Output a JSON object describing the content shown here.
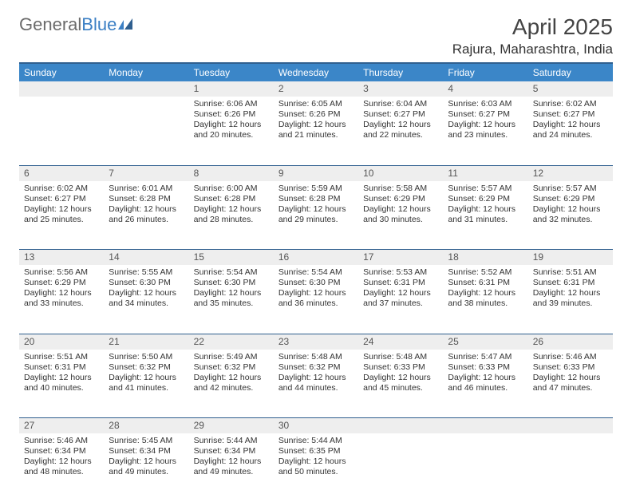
{
  "brand": {
    "part1": "General",
    "part2": "Blue"
  },
  "title": "April 2025",
  "location": "Rajura, Maharashtra, India",
  "colors": {
    "header_bg": "#3b86c8",
    "header_border": "#2f5f8f",
    "daynum_bg": "#eeeeee",
    "text": "#333333",
    "logo_gray": "#6b6b6b",
    "logo_blue": "#3b7fc4"
  },
  "weekdays": [
    "Sunday",
    "Monday",
    "Tuesday",
    "Wednesday",
    "Thursday",
    "Friday",
    "Saturday"
  ],
  "weeks": [
    [
      null,
      null,
      {
        "n": "1",
        "sr": "6:06 AM",
        "ss": "6:26 PM",
        "dl": "12 hours and 20 minutes."
      },
      {
        "n": "2",
        "sr": "6:05 AM",
        "ss": "6:26 PM",
        "dl": "12 hours and 21 minutes."
      },
      {
        "n": "3",
        "sr": "6:04 AM",
        "ss": "6:27 PM",
        "dl": "12 hours and 22 minutes."
      },
      {
        "n": "4",
        "sr": "6:03 AM",
        "ss": "6:27 PM",
        "dl": "12 hours and 23 minutes."
      },
      {
        "n": "5",
        "sr": "6:02 AM",
        "ss": "6:27 PM",
        "dl": "12 hours and 24 minutes."
      }
    ],
    [
      {
        "n": "6",
        "sr": "6:02 AM",
        "ss": "6:27 PM",
        "dl": "12 hours and 25 minutes."
      },
      {
        "n": "7",
        "sr": "6:01 AM",
        "ss": "6:28 PM",
        "dl": "12 hours and 26 minutes."
      },
      {
        "n": "8",
        "sr": "6:00 AM",
        "ss": "6:28 PM",
        "dl": "12 hours and 28 minutes."
      },
      {
        "n": "9",
        "sr": "5:59 AM",
        "ss": "6:28 PM",
        "dl": "12 hours and 29 minutes."
      },
      {
        "n": "10",
        "sr": "5:58 AM",
        "ss": "6:29 PM",
        "dl": "12 hours and 30 minutes."
      },
      {
        "n": "11",
        "sr": "5:57 AM",
        "ss": "6:29 PM",
        "dl": "12 hours and 31 minutes."
      },
      {
        "n": "12",
        "sr": "5:57 AM",
        "ss": "6:29 PM",
        "dl": "12 hours and 32 minutes."
      }
    ],
    [
      {
        "n": "13",
        "sr": "5:56 AM",
        "ss": "6:29 PM",
        "dl": "12 hours and 33 minutes."
      },
      {
        "n": "14",
        "sr": "5:55 AM",
        "ss": "6:30 PM",
        "dl": "12 hours and 34 minutes."
      },
      {
        "n": "15",
        "sr": "5:54 AM",
        "ss": "6:30 PM",
        "dl": "12 hours and 35 minutes."
      },
      {
        "n": "16",
        "sr": "5:54 AM",
        "ss": "6:30 PM",
        "dl": "12 hours and 36 minutes."
      },
      {
        "n": "17",
        "sr": "5:53 AM",
        "ss": "6:31 PM",
        "dl": "12 hours and 37 minutes."
      },
      {
        "n": "18",
        "sr": "5:52 AM",
        "ss": "6:31 PM",
        "dl": "12 hours and 38 minutes."
      },
      {
        "n": "19",
        "sr": "5:51 AM",
        "ss": "6:31 PM",
        "dl": "12 hours and 39 minutes."
      }
    ],
    [
      {
        "n": "20",
        "sr": "5:51 AM",
        "ss": "6:31 PM",
        "dl": "12 hours and 40 minutes."
      },
      {
        "n": "21",
        "sr": "5:50 AM",
        "ss": "6:32 PM",
        "dl": "12 hours and 41 minutes."
      },
      {
        "n": "22",
        "sr": "5:49 AM",
        "ss": "6:32 PM",
        "dl": "12 hours and 42 minutes."
      },
      {
        "n": "23",
        "sr": "5:48 AM",
        "ss": "6:32 PM",
        "dl": "12 hours and 44 minutes."
      },
      {
        "n": "24",
        "sr": "5:48 AM",
        "ss": "6:33 PM",
        "dl": "12 hours and 45 minutes."
      },
      {
        "n": "25",
        "sr": "5:47 AM",
        "ss": "6:33 PM",
        "dl": "12 hours and 46 minutes."
      },
      {
        "n": "26",
        "sr": "5:46 AM",
        "ss": "6:33 PM",
        "dl": "12 hours and 47 minutes."
      }
    ],
    [
      {
        "n": "27",
        "sr": "5:46 AM",
        "ss": "6:34 PM",
        "dl": "12 hours and 48 minutes."
      },
      {
        "n": "28",
        "sr": "5:45 AM",
        "ss": "6:34 PM",
        "dl": "12 hours and 49 minutes."
      },
      {
        "n": "29",
        "sr": "5:44 AM",
        "ss": "6:34 PM",
        "dl": "12 hours and 49 minutes."
      },
      {
        "n": "30",
        "sr": "5:44 AM",
        "ss": "6:35 PM",
        "dl": "12 hours and 50 minutes."
      },
      null,
      null,
      null
    ]
  ],
  "labels": {
    "sunrise": "Sunrise: ",
    "sunset": "Sunset: ",
    "daylight": "Daylight: "
  }
}
